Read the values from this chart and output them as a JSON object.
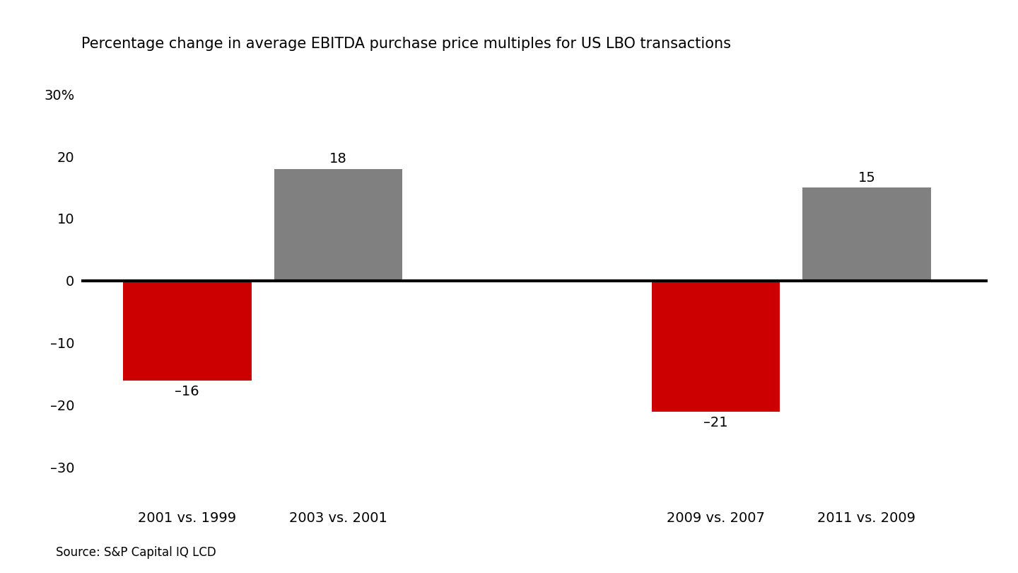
{
  "title": "Percentage change in average EBITDA purchase price multiples for US LBO transactions",
  "categories": [
    "2001 vs. 1999",
    "2003 vs. 2001",
    "2009 vs. 2007",
    "2011 vs. 2009"
  ],
  "values": [
    -16,
    18,
    -21,
    15
  ],
  "bar_colors": [
    "#cc0000",
    "#808080",
    "#cc0000",
    "#808080"
  ],
  "bar_labels": [
    "–16",
    "18",
    "–21",
    "15"
  ],
  "ylim": [
    -35,
    35
  ],
  "yticks": [
    -30,
    -20,
    -10,
    0,
    10,
    20,
    30
  ],
  "ytick_labels": [
    "–30",
    "–20",
    "–10",
    "0",
    "10",
    "20",
    "30%"
  ],
  "source_text": "Source: S&P Capital IQ LCD",
  "background_color": "#ffffff",
  "title_fontsize": 15,
  "tick_fontsize": 14,
  "label_fontsize": 14,
  "source_fontsize": 12,
  "bar_width": 0.85,
  "x_positions": [
    1,
    2,
    4.5,
    5.5
  ],
  "xlim": [
    0.3,
    6.3
  ]
}
